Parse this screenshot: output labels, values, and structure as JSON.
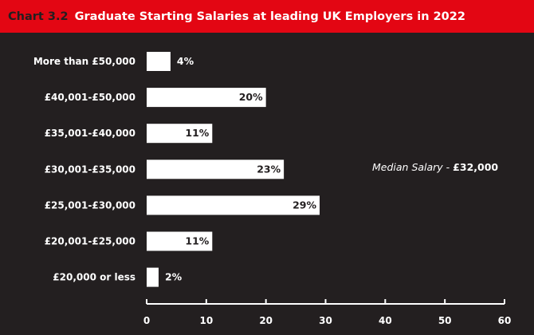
{
  "header": {
    "chart_number": "Chart 3.2",
    "title": "Graduate Starting Salaries at leading UK Employers in 2022"
  },
  "annotation": {
    "label": "Median Salary - ",
    "value": "£32,000"
  },
  "colors": {
    "header_bg": "#e30613",
    "background": "#231f20",
    "bar": "#ffffff",
    "text": "#ffffff"
  },
  "chart_data": {
    "type": "bar",
    "orientation": "horizontal",
    "title": "Graduate Starting Salaries at leading UK Employers in 2022",
    "categories": [
      "More than £50,000",
      "£40,001-£50,000",
      "£35,001-£40,000",
      "£30,001-£35,000",
      "£25,001-£30,000",
      "£20,001-£25,000",
      "£20,000 or less"
    ],
    "values": [
      4,
      20,
      11,
      23,
      29,
      11,
      2
    ],
    "value_labels": [
      "4%",
      "20%",
      "11%",
      "23%",
      "29%",
      "11%",
      "2%"
    ],
    "xlim": [
      0,
      60
    ],
    "xticks": [
      0,
      10,
      20,
      30,
      40,
      50,
      60
    ],
    "grid": false,
    "legend": "none"
  }
}
